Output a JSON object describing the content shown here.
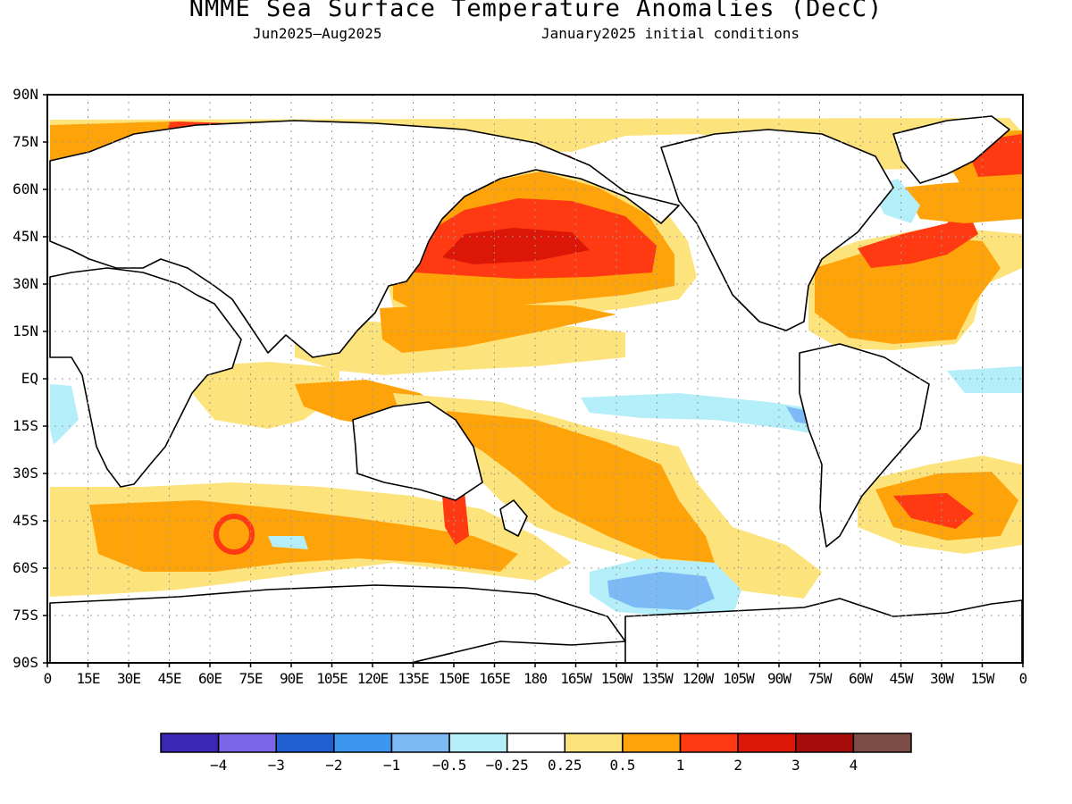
{
  "title": "NMME Sea Surface Temperature Anomalies (DecC)",
  "subtitle_left": "Jun2025—Aug2025",
  "subtitle_right": "January2025 initial conditions",
  "lat_labels": [
    "90N",
    "75N",
    "60N",
    "45N",
    "30N",
    "15N",
    "EQ",
    "15S",
    "30S",
    "45S",
    "60S",
    "75S",
    "90S"
  ],
  "lon_labels": [
    "0",
    "15E",
    "30E",
    "45E",
    "60E",
    "75E",
    "90E",
    "105E",
    "120E",
    "135E",
    "150E",
    "165E",
    "180",
    "165W",
    "150W",
    "135W",
    "120W",
    "105W",
    "90W",
    "75W",
    "60W",
    "45W",
    "30W",
    "15W",
    "0"
  ],
  "colorbar": {
    "colors": [
      "#3a28b4",
      "#7a66e6",
      "#1f5fcf",
      "#3d96f0",
      "#7dbaf5",
      "#b4eef8",
      "#ffffff",
      "#fde37b",
      "#fea30a",
      "#ff3a12",
      "#dd1708",
      "#a50d0a",
      "#7b4d44"
    ],
    "labels": [
      "−4",
      "−3",
      "−2",
      "−1",
      "−0.5",
      "−0.25",
      "0.25",
      "0.5",
      "1",
      "2",
      "3",
      "4"
    ]
  }
}
